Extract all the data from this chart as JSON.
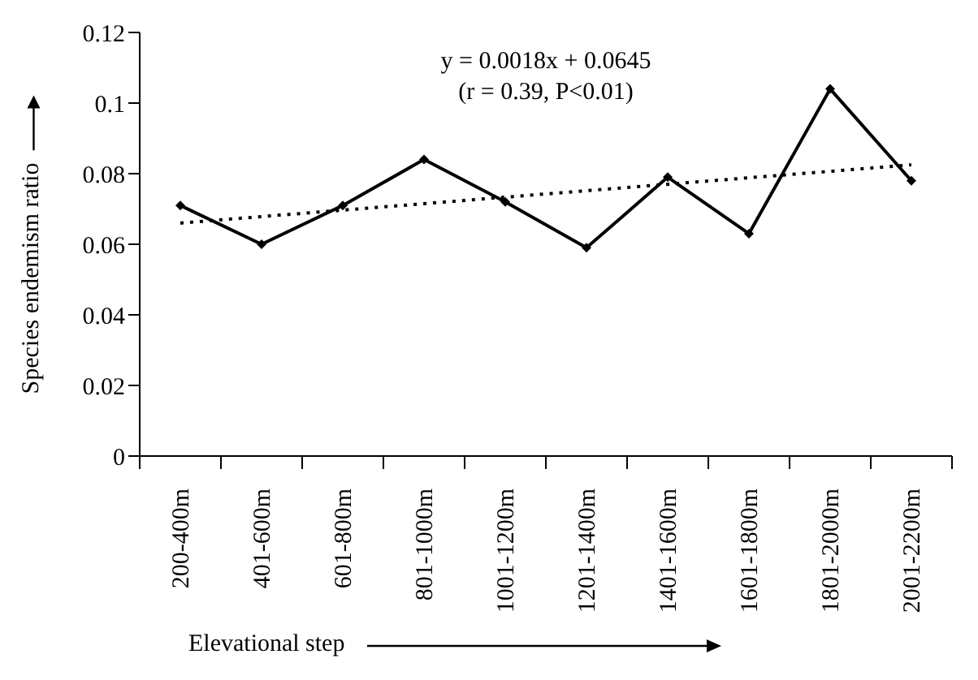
{
  "chart_data": {
    "type": "line",
    "xlabel": "Elevational step",
    "ylabel": "Species endemism ratio",
    "categories": [
      "200-400m",
      "401-600m",
      "601-800m",
      "801-1000m",
      "1001-1200m",
      "1201-1400m",
      "1401-1600m",
      "1601-1800m",
      "1801-2000m",
      "2001-2200m"
    ],
    "series": [
      {
        "color": "#000000",
        "marker": "diamond",
        "line_style": "solid",
        "values": [
          0.071,
          0.06,
          0.071,
          0.084,
          0.072,
          0.059,
          0.079,
          0.063,
          0.104,
          0.078
        ]
      },
      {
        "color": "#000000",
        "marker": "none",
        "line_style": "dotted",
        "values": [
          0.066,
          null,
          null,
          null,
          null,
          null,
          null,
          null,
          null,
          0.0825
        ]
      }
    ],
    "ylim": [
      0,
      0.12
    ],
    "yticks": [
      0,
      0.02,
      0.04,
      0.06,
      0.08,
      0.1,
      0.12
    ],
    "grid": false,
    "annotations": [
      "y = 0.0018x + 0.0645",
      "(r = 0.39, P<0.01)"
    ]
  }
}
